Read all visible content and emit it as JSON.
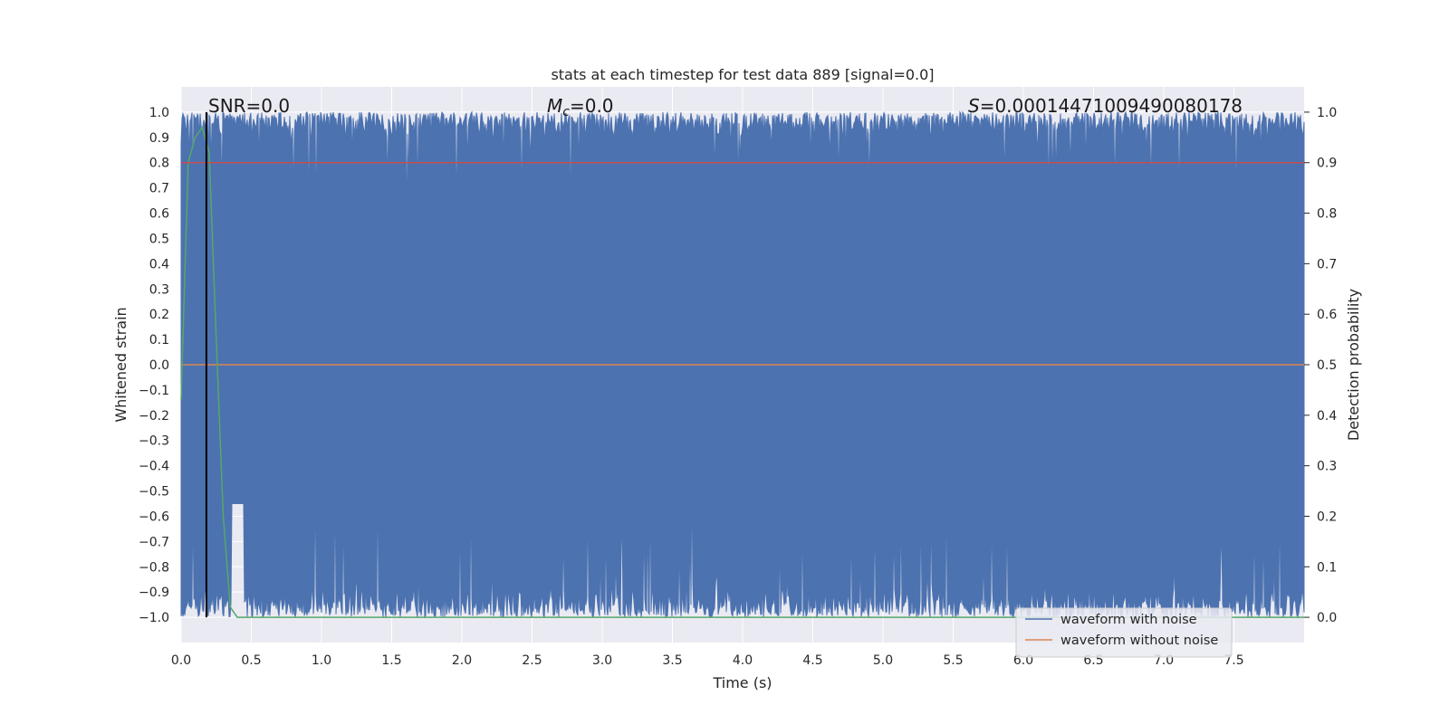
{
  "chart_data": {
    "type": "line",
    "title": "stats at each timestep for test data 889 [signal=0.0]",
    "xlabel": "Time (s)",
    "ylabel_left": "Whitened strain",
    "ylabel_right": "Detection probability",
    "xlim": [
      0.0,
      8.0
    ],
    "ylim_left": [
      -1.1,
      1.1
    ],
    "ylim_right": [
      -0.05,
      1.05
    ],
    "x_ticks": [
      "0.0",
      "0.5",
      "1.0",
      "1.5",
      "2.0",
      "2.5",
      "3.0",
      "3.5",
      "4.0",
      "4.5",
      "5.0",
      "5.5",
      "6.0",
      "6.5",
      "7.0",
      "7.5"
    ],
    "y_ticks_left": [
      "1.0",
      "0.9",
      "0.8",
      "0.7",
      "0.6",
      "0.5",
      "0.4",
      "0.3",
      "0.2",
      "0.1",
      "0.0",
      "−0.1",
      "−0.2",
      "−0.3",
      "−0.4",
      "−0.5",
      "−0.6",
      "−0.7",
      "−0.8",
      "−0.9",
      "−1.0"
    ],
    "y_ticks_right": [
      "1.0",
      "0.9",
      "0.8",
      "0.7",
      "0.6",
      "0.5",
      "0.4",
      "0.3",
      "0.2",
      "0.1",
      "0.0"
    ],
    "grid": true,
    "legend_position": "lower-right",
    "annotations": {
      "snr": "SNR=0.0",
      "mc_symbol": "M",
      "mc_sub": "c",
      "mc_value": "=0.0",
      "s_symbol": "S",
      "s_value": "=0.00014471009490080178"
    },
    "series": [
      {
        "name": "waveform with noise",
        "axis": "left",
        "color": "#4c72b0",
        "description_values": {
          "min": -1.0,
          "max": 1.0
        }
      },
      {
        "name": "waveform without noise",
        "axis": "left",
        "color": "#dd8452",
        "x": [
          0.0,
          8.0
        ],
        "y": [
          0.0,
          0.0
        ]
      },
      {
        "axis": "right",
        "color": "#55a868",
        "x": [
          0.0,
          0.05,
          0.1,
          0.15,
          0.2,
          0.25,
          0.3,
          0.35,
          0.4,
          8.0
        ],
        "y": [
          0.43,
          0.9,
          0.95,
          0.97,
          0.92,
          0.55,
          0.2,
          0.02,
          0.0,
          0.0
        ]
      },
      {
        "axis": "right",
        "color": "#c44e52",
        "x": [
          0.0,
          8.0
        ],
        "y": [
          0.9,
          0.9
        ]
      }
    ],
    "vline_x": 0.18
  }
}
